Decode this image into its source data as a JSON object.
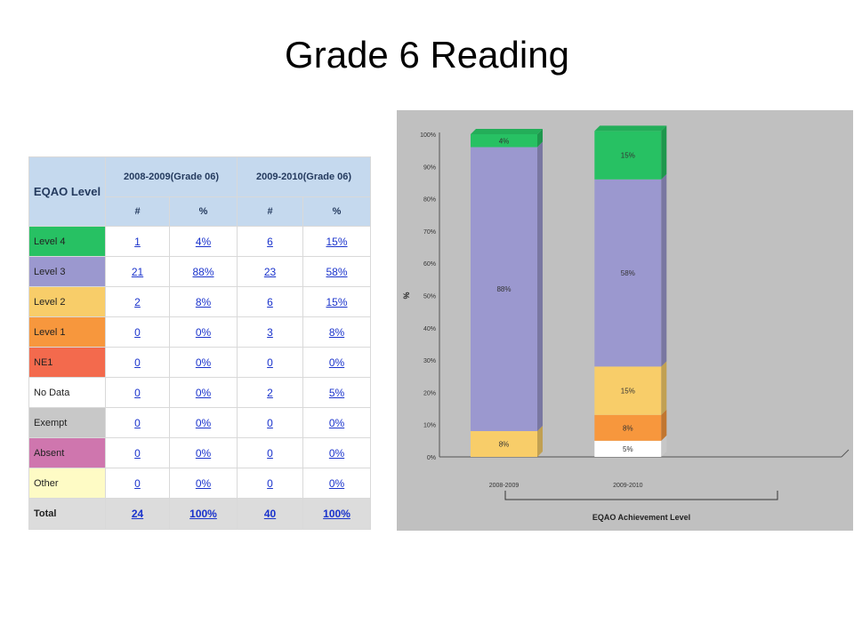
{
  "slide": {
    "title": "Grade 6 Reading"
  },
  "table": {
    "header_level": "EQAO Level",
    "header_years": [
      "2008-2009(Grade 06)",
      "2009-2010(Grade 06)"
    ],
    "subheaders": [
      "#",
      "%",
      "#",
      "%"
    ],
    "rows": [
      {
        "level": "Level 4",
        "color": "#27c163",
        "cls": "c-l4",
        "v": [
          "1",
          "4%",
          "6",
          "15%"
        ]
      },
      {
        "level": "Level 3",
        "color": "#9b98cf",
        "cls": "c-l3",
        "v": [
          "21",
          "88%",
          "23",
          "58%"
        ]
      },
      {
        "level": "Level 2",
        "color": "#f8cd69",
        "cls": "c-l2",
        "v": [
          "2",
          "8%",
          "6",
          "15%"
        ]
      },
      {
        "level": "Level 1",
        "color": "#f7973d",
        "cls": "c-l1",
        "v": [
          "0",
          "0%",
          "3",
          "8%"
        ]
      },
      {
        "level": "NE1",
        "color": "#f36a4d",
        "cls": "c-ne",
        "v": [
          "0",
          "0%",
          "0",
          "0%"
        ]
      },
      {
        "level": "No Data",
        "color": "#ffffff",
        "cls": "c-nd",
        "v": [
          "0",
          "0%",
          "2",
          "5%"
        ]
      },
      {
        "level": "Exempt",
        "color": "#c8c8c8",
        "cls": "c-ex",
        "v": [
          "0",
          "0%",
          "0",
          "0%"
        ]
      },
      {
        "level": "Absent",
        "color": "#cf76ae",
        "cls": "c-ab",
        "v": [
          "0",
          "0%",
          "0",
          "0%"
        ]
      },
      {
        "level": "Other",
        "color": "#fefbc5",
        "cls": "c-ot",
        "v": [
          "0",
          "0%",
          "0",
          "0%"
        ]
      }
    ],
    "total": {
      "label": "Total",
      "v": [
        "24",
        "100%",
        "40",
        "100%"
      ]
    }
  },
  "chart_data": {
    "type": "bar",
    "stacked": true,
    "categories": [
      "2008-2009",
      "2009-2010"
    ],
    "series": [
      {
        "level": "No Data",
        "color": "#ffffff",
        "values": [
          0,
          5
        ],
        "labels": [
          "",
          "5%"
        ]
      },
      {
        "level": "Level 1",
        "color": "#f7973d",
        "values": [
          0,
          8
        ],
        "labels": [
          "",
          "8%"
        ]
      },
      {
        "level": "Level 2",
        "color": "#f8cd69",
        "values": [
          8,
          15
        ],
        "labels": [
          "8%",
          "15%"
        ]
      },
      {
        "level": "Level 3",
        "color": "#9b98cf",
        "values": [
          88,
          58
        ],
        "labels": [
          "88%",
          "58%"
        ]
      },
      {
        "level": "Level 4",
        "color": "#27c163",
        "values": [
          4,
          15
        ],
        "labels": [
          "4%",
          "15%"
        ]
      }
    ],
    "y_ticks": [
      "0%",
      "10%",
      "20%",
      "30%",
      "40%",
      "50%",
      "60%",
      "70%",
      "80%",
      "90%",
      "100%"
    ],
    "ylim": [
      0,
      100
    ],
    "ylabel": "%",
    "xlabel": "EQAO Achievement Level",
    "grid": false,
    "legend": "none"
  }
}
